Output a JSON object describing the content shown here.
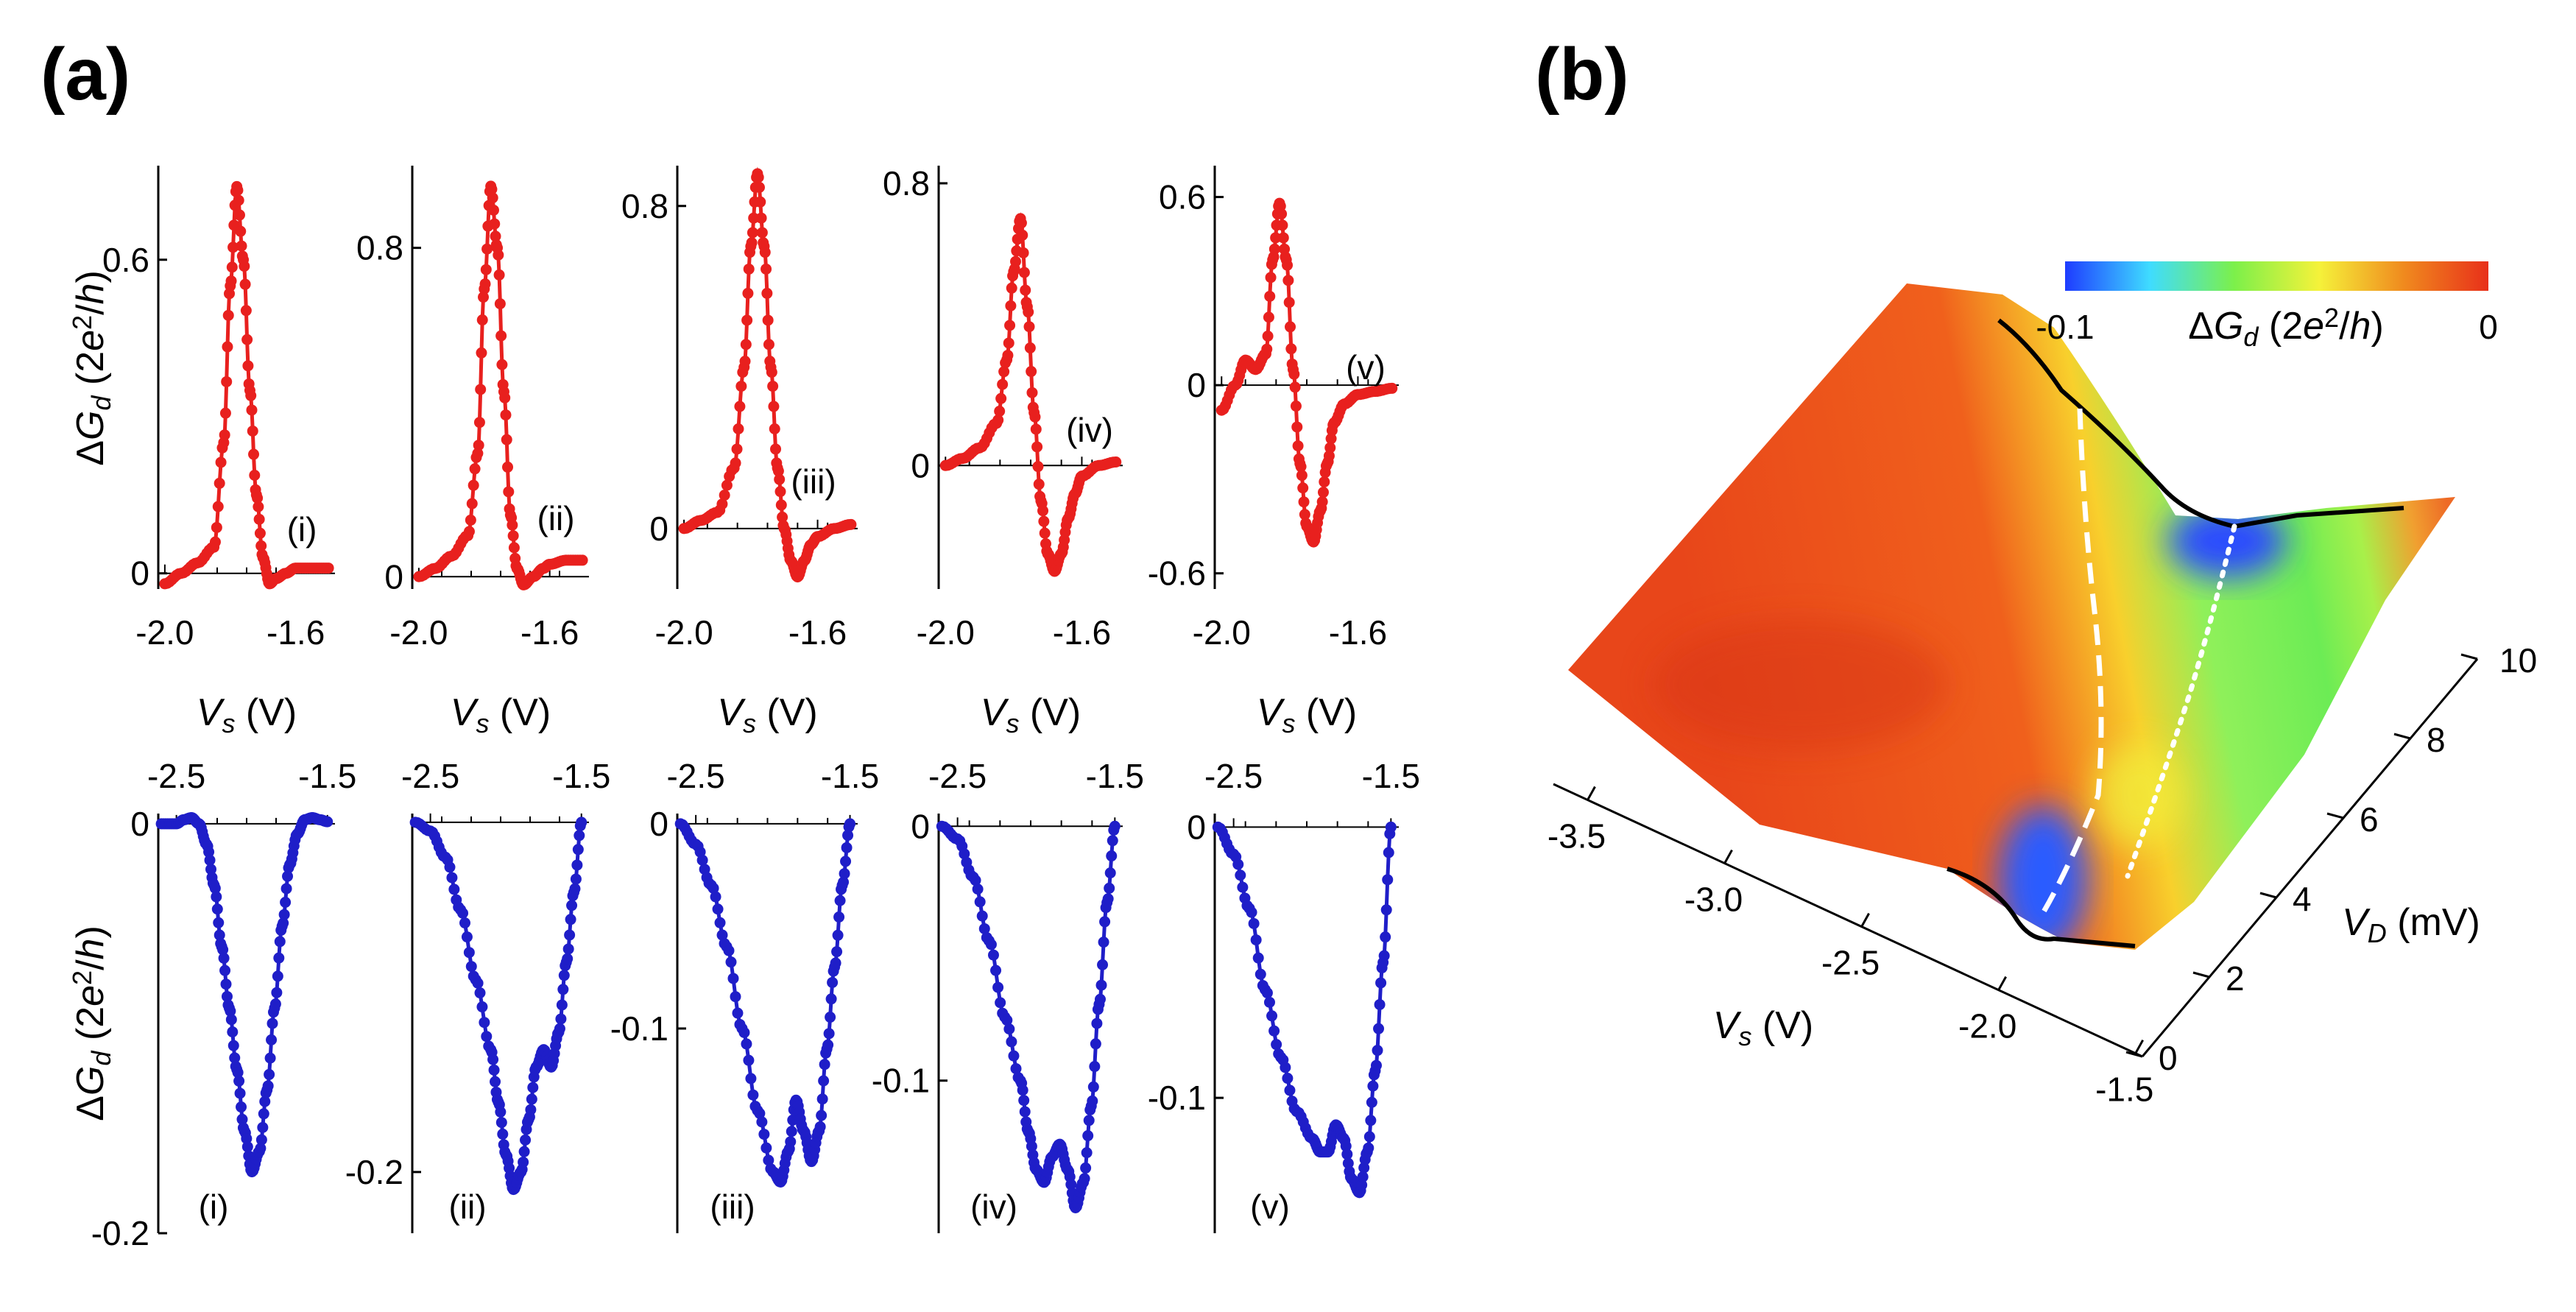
{
  "panels": {
    "a": "(a)",
    "b": "(b)"
  },
  "chart_data": [
    {
      "type": "line",
      "id": "a-i",
      "row": "top",
      "label": "(i)",
      "color": "#e8201e",
      "xlim": [
        -2.0,
        -1.5
      ],
      "ylim": [
        -0.03,
        0.78
      ],
      "yticks": [
        "0.6",
        "0"
      ],
      "ytick_values": [
        0.6,
        0
      ],
      "xticks": [
        "-2.0",
        "-1.6"
      ],
      "xtick_values": [
        -2.0,
        -1.6
      ],
      "xlabel": "Vs (V)",
      "ylabel": "ΔGd (2e²/h)",
      "x": [
        -2.0,
        -1.95,
        -1.9,
        -1.85,
        -1.82,
        -1.8,
        -1.78,
        -1.76,
        -1.74,
        -1.72,
        -1.7,
        -1.68,
        -1.66,
        -1.63,
        -1.6,
        -1.55,
        -1.5
      ],
      "y": [
        -0.02,
        0.0,
        0.02,
        0.05,
        0.25,
        0.55,
        0.74,
        0.6,
        0.35,
        0.15,
        0.03,
        -0.02,
        -0.01,
        0.0,
        0.01,
        0.01,
        0.01
      ]
    },
    {
      "type": "line",
      "id": "a-ii",
      "row": "top",
      "label": "(ii)",
      "color": "#e8201e",
      "xlim": [
        -2.0,
        -1.5
      ],
      "ylim": [
        -0.03,
        1.0
      ],
      "yticks": [
        "0.8",
        "0"
      ],
      "ytick_values": [
        0.8,
        0
      ],
      "xticks": [
        "-2.0",
        "-1.6"
      ],
      "xtick_values": [
        -2.0,
        -1.6
      ],
      "xlabel": "Vs (V)",
      "ylabel": "",
      "x": [
        -2.0,
        -1.95,
        -1.9,
        -1.85,
        -1.82,
        -1.8,
        -1.78,
        -1.76,
        -1.74,
        -1.72,
        -1.7,
        -1.68,
        -1.65,
        -1.62,
        -1.6,
        -1.55,
        -1.5
      ],
      "y": [
        0.0,
        0.02,
        0.05,
        0.1,
        0.3,
        0.7,
        0.95,
        0.8,
        0.45,
        0.15,
        0.02,
        -0.02,
        0.0,
        0.02,
        0.03,
        0.04,
        0.04
      ]
    },
    {
      "type": "line",
      "id": "a-iii",
      "row": "top",
      "label": "(iii)",
      "color": "#e8201e",
      "xlim": [
        -2.0,
        -1.5
      ],
      "ylim": [
        -0.15,
        0.9
      ],
      "yticks": [
        "0.8",
        "0"
      ],
      "ytick_values": [
        0.8,
        0
      ],
      "xticks": [
        "-2.0",
        "-1.6"
      ],
      "xtick_values": [
        -2.0,
        -1.6
      ],
      "xlabel": "Vs (V)",
      "ylabel": "",
      "x": [
        -2.0,
        -1.95,
        -1.9,
        -1.85,
        -1.82,
        -1.8,
        -1.78,
        -1.76,
        -1.74,
        -1.72,
        -1.7,
        -1.68,
        -1.66,
        -1.64,
        -1.62,
        -1.6,
        -1.55,
        -1.5
      ],
      "y": [
        0.0,
        0.02,
        0.04,
        0.15,
        0.4,
        0.7,
        0.88,
        0.7,
        0.4,
        0.15,
        0.0,
        -0.08,
        -0.12,
        -0.08,
        -0.04,
        -0.02,
        0.0,
        0.01
      ]
    },
    {
      "type": "line",
      "id": "a-iv",
      "row": "top",
      "label": "(iv)",
      "color": "#e8201e",
      "xlim": [
        -2.0,
        -1.5
      ],
      "ylim": [
        -0.35,
        0.85
      ],
      "yticks": [
        "0.8",
        "0"
      ],
      "ytick_values": [
        0.8,
        0
      ],
      "xticks": [
        "-2.0",
        "-1.6"
      ],
      "xtick_values": [
        -2.0,
        -1.6
      ],
      "xlabel": "Vs (V)",
      "ylabel": "",
      "x": [
        -2.0,
        -1.95,
        -1.9,
        -1.85,
        -1.82,
        -1.8,
        -1.78,
        -1.76,
        -1.74,
        -1.72,
        -1.7,
        -1.68,
        -1.66,
        -1.64,
        -1.62,
        -1.6,
        -1.55,
        -1.5
      ],
      "y": [
        0.0,
        0.02,
        0.05,
        0.12,
        0.3,
        0.55,
        0.7,
        0.45,
        0.15,
        -0.1,
        -0.25,
        -0.3,
        -0.25,
        -0.15,
        -0.08,
        -0.03,
        0.0,
        0.01
      ]
    },
    {
      "type": "line",
      "id": "a-v",
      "row": "top",
      "label": "(v)",
      "color": "#e8201e",
      "xlim": [
        -2.0,
        -1.5
      ],
      "ylim": [
        -0.65,
        0.7
      ],
      "yticks": [
        "0.6",
        "0",
        "-0.6"
      ],
      "ytick_values": [
        0.6,
        0,
        -0.6
      ],
      "xticks": [
        "-2.0",
        "-1.6"
      ],
      "xtick_values": [
        -2.0,
        -1.6
      ],
      "xlabel": "Vs (V)",
      "ylabel": "",
      "x": [
        -2.0,
        -1.96,
        -1.93,
        -1.9,
        -1.87,
        -1.85,
        -1.83,
        -1.81,
        -1.79,
        -1.77,
        -1.75,
        -1.73,
        -1.71,
        -1.69,
        -1.67,
        -1.64,
        -1.6,
        -1.55,
        -1.5
      ],
      "y": [
        -0.08,
        0.0,
        0.08,
        0.05,
        0.1,
        0.4,
        0.58,
        0.4,
        0.05,
        -0.25,
        -0.45,
        -0.5,
        -0.4,
        -0.25,
        -0.12,
        -0.06,
        -0.03,
        -0.02,
        -0.01
      ]
    },
    {
      "type": "line",
      "id": "b-i",
      "row": "bottom",
      "label": "(i)",
      "color": "#1f1ec8",
      "xlim": [
        -2.5,
        -1.5
      ],
      "ylim": [
        -0.2,
        0.005
      ],
      "yticks": [
        "0",
        "-0.2"
      ],
      "ytick_values": [
        0,
        -0.2
      ],
      "xticks": [
        "-2.5",
        "-1.5"
      ],
      "xtick_values": [
        -2.5,
        -1.5
      ],
      "xlabel": "",
      "ylabel": "ΔGd (2e²/h)",
      "x": [
        -2.6,
        -2.5,
        -2.45,
        -2.4,
        -2.35,
        -2.3,
        -2.25,
        -2.2,
        -2.15,
        -2.1,
        -2.05,
        -2.0,
        -1.95,
        -1.9,
        -1.85,
        -1.8,
        -1.75,
        -1.7,
        -1.65,
        -1.6,
        -1.55,
        -1.5
      ],
      "y": [
        0.0,
        0.0,
        0.002,
        0.003,
        0.0,
        -0.01,
        -0.03,
        -0.06,
        -0.09,
        -0.12,
        -0.15,
        -0.17,
        -0.16,
        -0.13,
        -0.09,
        -0.05,
        -0.02,
        -0.005,
        0.002,
        0.003,
        0.002,
        0.001
      ]
    },
    {
      "type": "line",
      "id": "b-ii",
      "row": "bottom",
      "label": "(ii)",
      "color": "#1f1ec8",
      "xlim": [
        -2.5,
        -1.5
      ],
      "ylim": [
        -0.235,
        0.005
      ],
      "yticks": [
        "-0.2"
      ],
      "ytick_values": [
        -0.2
      ],
      "xticks": [
        "-2.5",
        "-1.5"
      ],
      "xtick_values": [
        -2.5,
        -1.5
      ],
      "xlabel": "",
      "ylabel": "",
      "x": [
        -2.6,
        -2.5,
        -2.4,
        -2.3,
        -2.2,
        -2.1,
        -2.05,
        -2.0,
        -1.95,
        -1.9,
        -1.85,
        -1.8,
        -1.75,
        -1.7,
        -1.65,
        -1.6,
        -1.55,
        -1.5
      ],
      "y": [
        0.0,
        -0.005,
        -0.02,
        -0.05,
        -0.09,
        -0.13,
        -0.16,
        -0.19,
        -0.21,
        -0.2,
        -0.17,
        -0.14,
        -0.13,
        -0.14,
        -0.12,
        -0.08,
        -0.04,
        0.0
      ]
    },
    {
      "type": "line",
      "id": "b-iii",
      "row": "bottom",
      "label": "(iii)",
      "color": "#1f1ec8",
      "xlim": [
        -2.5,
        -1.5
      ],
      "ylim": [
        -0.2,
        0.005
      ],
      "yticks": [
        "0",
        "-0.1"
      ],
      "ytick_values": [
        0,
        -0.1
      ],
      "xticks": [
        "-2.5",
        "-1.5"
      ],
      "xtick_values": [
        -2.5,
        -1.5
      ],
      "xlabel": "",
      "ylabel": "",
      "x": [
        -2.6,
        -2.5,
        -2.4,
        -2.3,
        -2.2,
        -2.1,
        -2.0,
        -1.95,
        -1.9,
        -1.85,
        -1.8,
        -1.75,
        -1.7,
        -1.65,
        -1.6,
        -1.55,
        -1.5
      ],
      "y": [
        0.0,
        -0.01,
        -0.03,
        -0.06,
        -0.1,
        -0.14,
        -0.17,
        -0.175,
        -0.16,
        -0.135,
        -0.15,
        -0.165,
        -0.15,
        -0.11,
        -0.07,
        -0.03,
        0.0
      ]
    },
    {
      "type": "line",
      "id": "b-iv",
      "row": "bottom",
      "label": "(iv)",
      "color": "#1f1ec8",
      "xlim": [
        -2.5,
        -1.5
      ],
      "ylim": [
        -0.16,
        0.005
      ],
      "yticks": [
        "0",
        "-0.1"
      ],
      "ytick_values": [
        0,
        -0.1
      ],
      "xticks": [
        "-2.5",
        "-1.5"
      ],
      "xtick_values": [
        -2.5,
        -1.5
      ],
      "xlabel": "",
      "ylabel": "",
      "x": [
        -2.6,
        -2.5,
        -2.4,
        -2.3,
        -2.2,
        -2.1,
        -2.05,
        -2.0,
        -1.95,
        -1.9,
        -1.85,
        -1.8,
        -1.75,
        -1.7,
        -1.65,
        -1.6,
        -1.55,
        -1.5
      ],
      "y": [
        0.0,
        -0.005,
        -0.02,
        -0.045,
        -0.075,
        -0.1,
        -0.12,
        -0.135,
        -0.14,
        -0.13,
        -0.125,
        -0.135,
        -0.15,
        -0.14,
        -0.11,
        -0.07,
        -0.03,
        0.0
      ]
    },
    {
      "type": "line",
      "id": "b-v",
      "row": "bottom",
      "label": "(v)",
      "color": "#1f1ec8",
      "xlim": [
        -2.5,
        -1.5
      ],
      "ylim": [
        -0.15,
        0.005
      ],
      "yticks": [
        "0",
        "-0.1"
      ],
      "ytick_values": [
        0,
        -0.1
      ],
      "xticks": [
        "-2.5",
        "-1.5"
      ],
      "xtick_values": [
        -2.5,
        -1.5
      ],
      "xlabel": "",
      "ylabel": "",
      "x": [
        -2.6,
        -2.5,
        -2.4,
        -2.3,
        -2.2,
        -2.1,
        -2.0,
        -1.95,
        -1.9,
        -1.85,
        -1.8,
        -1.75,
        -1.7,
        -1.65,
        -1.6,
        -1.55,
        -1.5
      ],
      "y": [
        0.0,
        -0.01,
        -0.03,
        -0.06,
        -0.085,
        -0.105,
        -0.115,
        -0.12,
        -0.12,
        -0.11,
        -0.115,
        -0.13,
        -0.135,
        -0.12,
        -0.09,
        -0.05,
        0.0
      ]
    },
    {
      "type": "heatmap",
      "id": "b-surface",
      "title": "",
      "colorbar": {
        "label": "ΔGd (2e²/h)",
        "min_label": "-0.1",
        "max_label": "0",
        "min": -0.1,
        "max": 0,
        "colors": [
          "#1e3cff",
          "#3fdcff",
          "#7cf04a",
          "#f5f23a",
          "#f08a1e",
          "#e8301a"
        ]
      },
      "xaxis": {
        "label": "Vs (V)",
        "ticks": [
          "-3.5",
          "-3.0",
          "-2.5",
          "-2.0",
          "-1.5"
        ],
        "values": [
          -3.5,
          -3.0,
          -2.5,
          -2.0,
          -1.5
        ]
      },
      "yaxis": {
        "label": "VD (mV)",
        "ticks": [
          "0",
          "2",
          "4",
          "6",
          "8",
          "10"
        ],
        "values": [
          0,
          2,
          4,
          6,
          8,
          10
        ]
      }
    }
  ],
  "axis_text": {
    "vs_label": "Vs (V)",
    "vs_sub": "s",
    "gd_label": "ΔGd (2e²/h)",
    "vd_label": "VD (mV)"
  }
}
